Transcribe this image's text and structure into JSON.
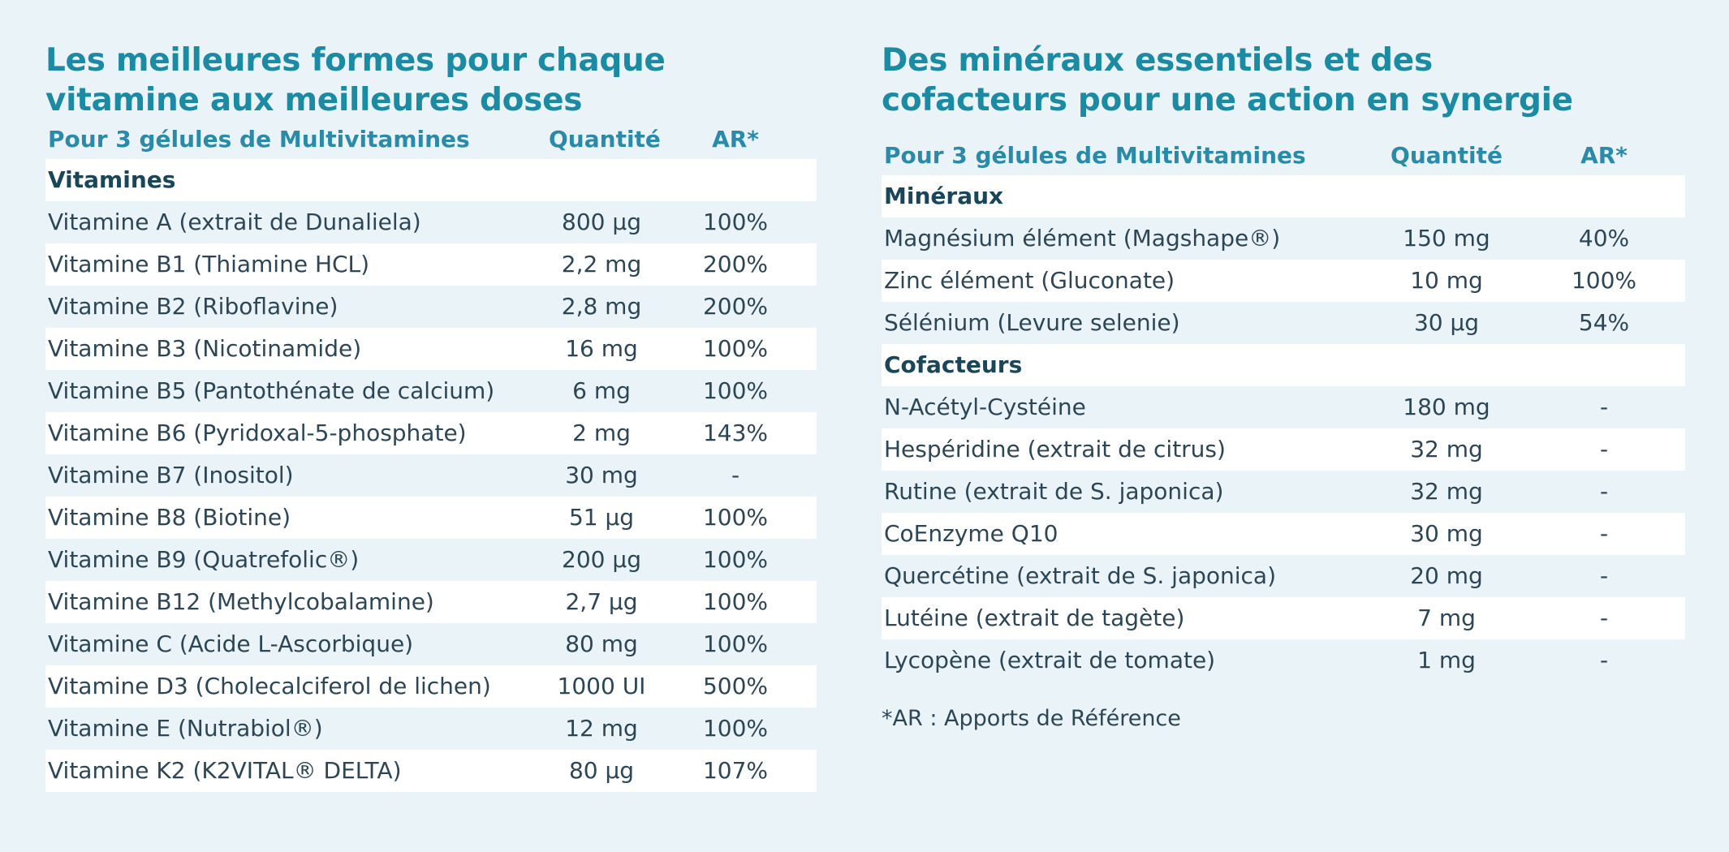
{
  "left": {
    "title": "Les meilleures formes pour chaque vitamine aux meilleures doses",
    "header": [
      "Pour 3 gélules de Multivitamines",
      "Quantité",
      "AR*"
    ],
    "sections": [
      {
        "title": "Vitamines",
        "rows": [
          [
            "Vitamine A (extrait de Dunaliela)",
            "800 µg",
            "100%"
          ],
          [
            "Vitamine B1 (Thiamine HCL)",
            "2,2 mg",
            "200%"
          ],
          [
            "Vitamine B2 (Riboflavine)",
            "2,8 mg",
            "200%"
          ],
          [
            "Vitamine B3 (Nicotinamide)",
            "16 mg",
            "100%"
          ],
          [
            "Vitamine B5 (Pantothénate de calcium)",
            "6 mg",
            "100%"
          ],
          [
            "Vitamine B6 (Pyridoxal-5-phosphate)",
            "2 mg",
            "143%"
          ],
          [
            "Vitamine B7 (Inositol)",
            "30 mg",
            "-"
          ],
          [
            "Vitamine B8 (Biotine)",
            "51 µg",
            "100%"
          ],
          [
            "Vitamine B9 (Quatrefolic®)",
            "200 µg",
            "100%"
          ],
          [
            "Vitamine B12 (Methylcobalamine)",
            "2,7 µg",
            "100%"
          ],
          [
            "Vitamine C (Acide L-Ascorbique)",
            "80 mg",
            "100%"
          ],
          [
            "Vitamine D3 (Cholecalciferol de lichen)",
            "1000 UI",
            "500%"
          ],
          [
            "Vitamine E (Nutrabiol®)",
            "12 mg",
            "100%"
          ],
          [
            "Vitamine K2 (K2VITAL® DELTA)",
            "80 µg",
            "107%"
          ]
        ]
      }
    ]
  },
  "right": {
    "title": "Des minéraux essentiels et des cofacteurs pour une action en synergie",
    "header": [
      "Pour 3 gélules de Multivitamines",
      "Quantité",
      "AR*"
    ],
    "sections": [
      {
        "title": "Minéraux",
        "rows": [
          [
            "Magnésium élément (Magshape®)",
            "150 mg",
            "40%"
          ],
          [
            "Zinc élément (Gluconate)",
            "10 mg",
            "100%"
          ],
          [
            "Sélénium (Levure selenie)",
            "30 µg",
            "54%"
          ]
        ]
      },
      {
        "title": "Cofacteurs",
        "rows": [
          [
            "N-Acétyl-Cystéine",
            "180 mg",
            "-"
          ],
          [
            "Hespéridine (extrait de citrus)",
            "32 mg",
            "-"
          ],
          [
            "Rutine (extrait de S. japonica)",
            "32 mg",
            "-"
          ],
          [
            "CoEnzyme Q10",
            "30 mg",
            "-"
          ],
          [
            "Quercétine (extrait de S. japonica)",
            "20 mg",
            "-"
          ],
          [
            "Lutéine (extrait de tagète)",
            "7 mg",
            "-"
          ],
          [
            "Lycopène (extrait de tomate)",
            "1 mg",
            "-"
          ]
        ]
      }
    ],
    "footnote": "*AR : Apports de Référence"
  }
}
